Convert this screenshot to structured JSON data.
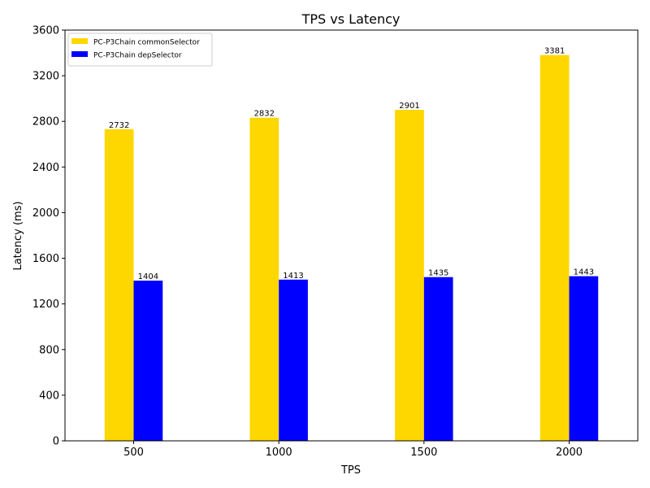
{
  "chart_data": {
    "type": "bar",
    "title": "TPS vs Latency",
    "xlabel": "TPS",
    "ylabel": "Latency (ms)",
    "categories": [
      "500",
      "1000",
      "1500",
      "2000"
    ],
    "ylim": [
      0,
      3600
    ],
    "yticks": [
      "0",
      "400",
      "800",
      "1200",
      "1600",
      "2000",
      "2400",
      "2800",
      "3200",
      "3600"
    ],
    "grid": false,
    "legend_position": "top-left",
    "series": [
      {
        "name": "PC-P3Chain commonSelector",
        "color": "#FFD700",
        "values": [
          2732,
          2832,
          2901,
          3381
        ]
      },
      {
        "name": "PC-P3Chain depSelector",
        "color": "#0000FF",
        "values": [
          1404,
          1413,
          1435,
          1443
        ]
      }
    ]
  }
}
